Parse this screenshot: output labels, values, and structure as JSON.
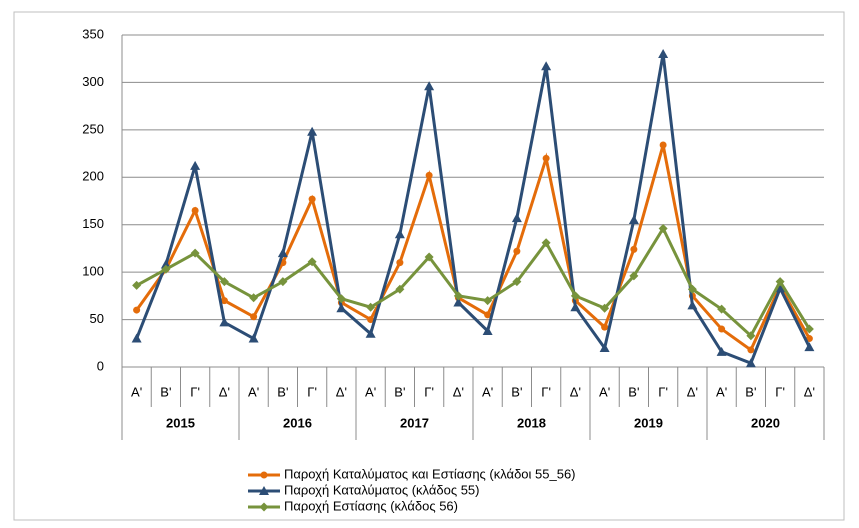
{
  "chart_data": {
    "type": "line",
    "categories": [
      "Α'",
      "Β'",
      "Γ'",
      "Δ'",
      "Α'",
      "Β'",
      "Γ'",
      "Δ'",
      "Α'",
      "Β'",
      "Γ'",
      "Δ'",
      "Α'",
      "Β'",
      "Γ'",
      "Δ'",
      "Α'",
      "Β'",
      "Γ'",
      "Δ'",
      "Α'",
      "Β'",
      "Γ'",
      "Δ'"
    ],
    "year_groups": [
      "2015",
      "2016",
      "2017",
      "2018",
      "2019",
      "2020"
    ],
    "series": [
      {
        "name": "Παροχή Καταλύματος και Εστίασης (κλάδοι 55_56)",
        "color": "#e46c0a",
        "marker": "circle",
        "values": [
          60,
          103,
          165,
          70,
          53,
          110,
          177,
          68,
          50,
          110,
          202,
          73,
          55,
          122,
          220,
          70,
          42,
          124,
          234,
          75,
          40,
          18,
          85,
          30
        ]
      },
      {
        "name": "Παροχή Καταλύματος  (κλάδος 55)",
        "color": "#2c4d75",
        "marker": "triangle",
        "values": [
          30,
          108,
          212,
          47,
          30,
          120,
          248,
          62,
          35,
          140,
          296,
          68,
          38,
          157,
          317,
          63,
          20,
          155,
          330,
          65,
          16,
          4,
          83,
          21
        ]
      },
      {
        "name": "Παροχή Εστίασης  (κλάδος 56)",
        "color": "#77933c",
        "marker": "diamond",
        "values": [
          86,
          103,
          120,
          90,
          73,
          90,
          111,
          72,
          63,
          82,
          116,
          75,
          70,
          90,
          131,
          75,
          62,
          96,
          146,
          82,
          61,
          33,
          90,
          40
        ]
      }
    ],
    "ylim": [
      0,
      350
    ],
    "yticks": [
      0,
      50,
      100,
      150,
      200,
      250,
      300,
      350
    ],
    "grid": true
  }
}
